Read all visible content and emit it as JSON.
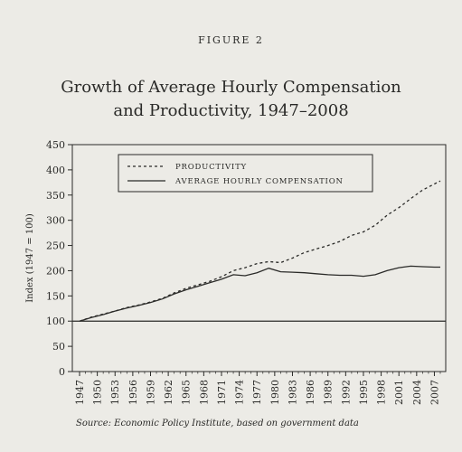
{
  "figure_label": "FIGURE 2",
  "title_line1": "Growth of Average Hourly Compensation",
  "title_line2": "and Productivity, 1947–2008",
  "source": "Source: Economic Policy Institute, based on government data",
  "chart_data": {
    "type": "line",
    "ylabel": "Index (1947 = 100)",
    "ylim": [
      0,
      450
    ],
    "yticks": [
      0,
      50,
      100,
      150,
      200,
      250,
      300,
      350,
      400,
      450
    ],
    "xlim": [
      1947,
      2008
    ],
    "xticks": [
      1947,
      1950,
      1953,
      1956,
      1959,
      1962,
      1965,
      1968,
      1971,
      1974,
      1977,
      1980,
      1983,
      1986,
      1989,
      1992,
      1995,
      1998,
      2001,
      2004,
      2007
    ],
    "legend_position": "top-center",
    "reference_line": 100,
    "x": [
      1947,
      1949,
      1951,
      1953,
      1955,
      1957,
      1959,
      1961,
      1963,
      1965,
      1967,
      1969,
      1971,
      1973,
      1975,
      1977,
      1979,
      1981,
      1983,
      1985,
      1987,
      1989,
      1991,
      1993,
      1995,
      1997,
      1999,
      2001,
      2003,
      2005,
      2007,
      2008
    ],
    "series": [
      {
        "name": "PRODUCTIVITY",
        "style": "dashed",
        "values": [
          100,
          108,
          114,
          120,
          127,
          132,
          138,
          145,
          156,
          165,
          172,
          179,
          188,
          200,
          206,
          214,
          218,
          216,
          225,
          236,
          243,
          250,
          258,
          270,
          277,
          290,
          310,
          325,
          343,
          360,
          372,
          378
        ]
      },
      {
        "name": "AVERAGE HOURLY COMPENSATION",
        "style": "solid",
        "values": [
          100,
          107,
          113,
          120,
          126,
          131,
          137,
          144,
          154,
          162,
          169,
          176,
          183,
          192,
          190,
          196,
          205,
          198,
          197,
          196,
          194,
          192,
          191,
          191,
          189,
          192,
          200,
          206,
          209,
          208,
          207,
          207
        ]
      }
    ]
  }
}
